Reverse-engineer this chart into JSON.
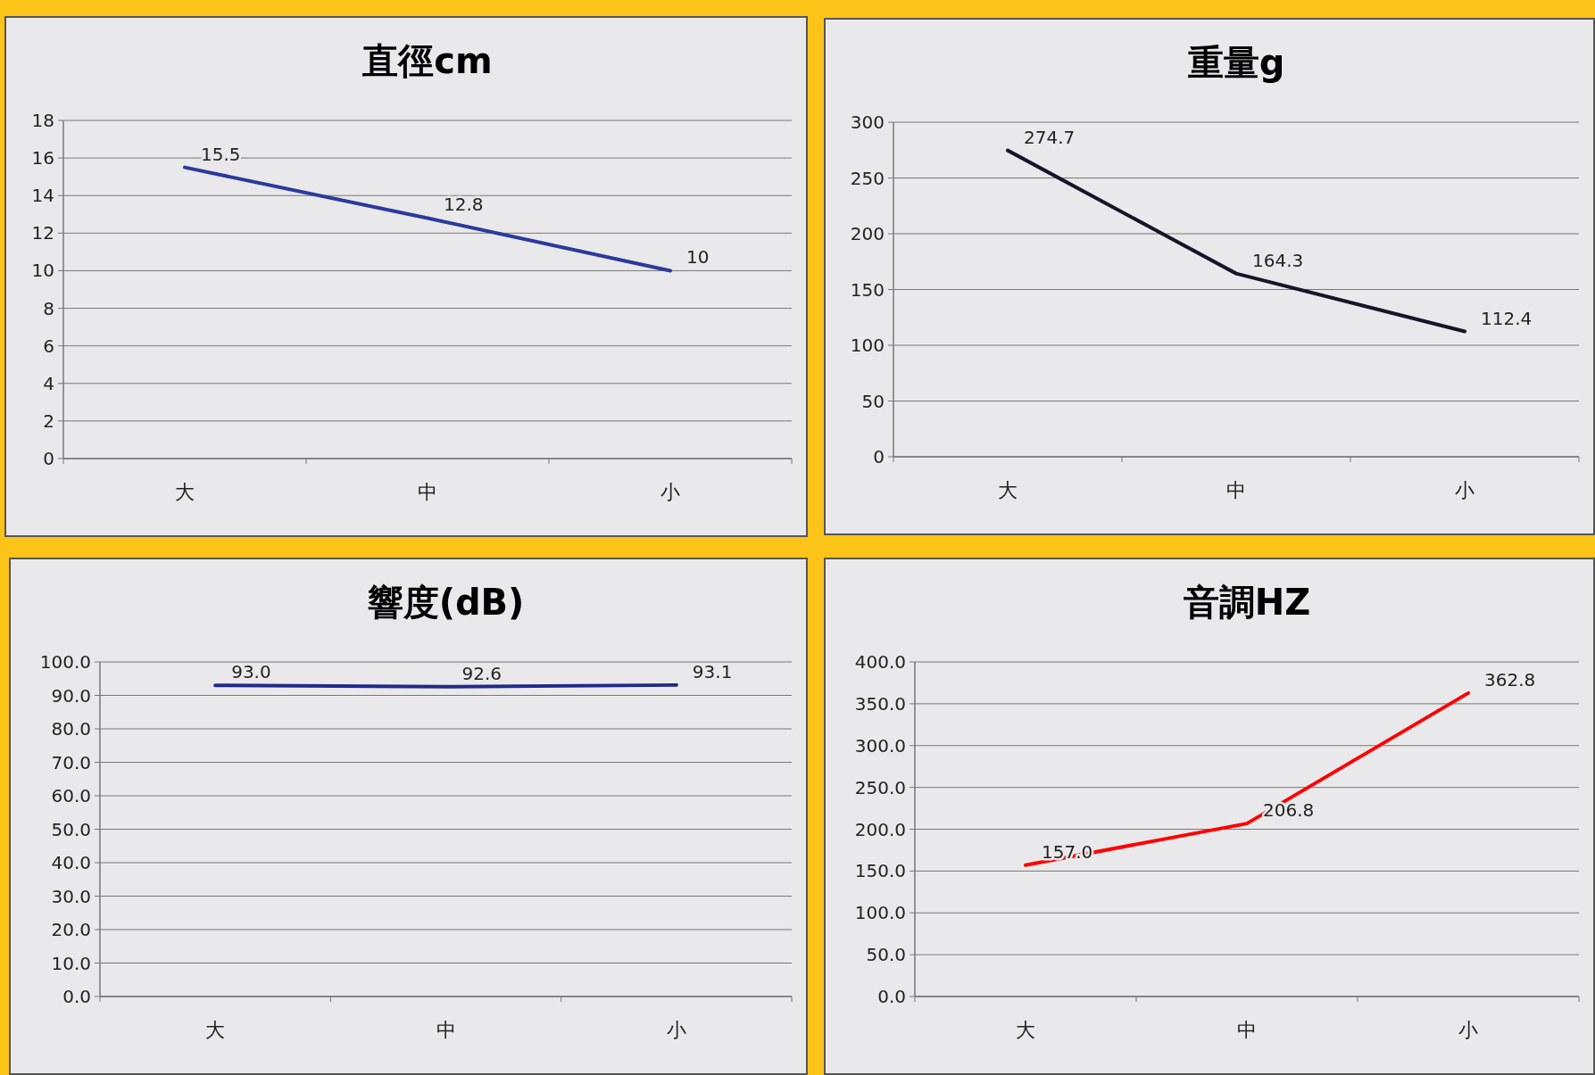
{
  "chart_data": [
    {
      "type": "line",
      "title": "直徑cm",
      "categories": [
        "大",
        "中",
        "小"
      ],
      "values": [
        15.5,
        12.8,
        10
      ],
      "color": "#2b3a9c",
      "ylim": [
        0,
        18
      ],
      "yticks": [
        0,
        2,
        4,
        6,
        8,
        10,
        12,
        14,
        16,
        18
      ],
      "grid": "y",
      "data_labels": true
    },
    {
      "type": "line",
      "title": "重量g",
      "categories": [
        "大",
        "中",
        "小"
      ],
      "values": [
        274.7,
        164.3,
        112.4
      ],
      "color": "#15152a",
      "ylim": [
        0,
        300
      ],
      "yticks": [
        0,
        50,
        100,
        150,
        200,
        250,
        300
      ],
      "grid": "y",
      "data_labels": true
    },
    {
      "type": "line",
      "title": "響度(dB)",
      "categories": [
        "大",
        "中",
        "小"
      ],
      "values": [
        93.0,
        92.6,
        93.1
      ],
      "value_labels": [
        "93.0",
        "92.6",
        "93.1"
      ],
      "color": "#1f2a8a",
      "ylim": [
        0,
        100
      ],
      "yticks": [
        {
          "value": 0,
          "label": "0.0"
        },
        {
          "value": 10,
          "label": "10.0"
        },
        {
          "value": 20,
          "label": "20.0"
        },
        {
          "value": 30,
          "label": "30.0"
        },
        {
          "value": 40,
          "label": "40.0"
        },
        {
          "value": 50,
          "label": "50.0"
        },
        {
          "value": 60,
          "label": "60.0"
        },
        {
          "value": 70,
          "label": "70.0"
        },
        {
          "value": 80,
          "label": "80.0"
        },
        {
          "value": 90,
          "label": "90.0"
        },
        {
          "value": 100,
          "label": "100.0"
        }
      ],
      "grid": "y"
    },
    {
      "type": "line",
      "title": "音調HZ",
      "categories": [
        "大",
        "中",
        "小"
      ],
      "values": [
        157.0,
        206.8,
        362.8
      ],
      "value_labels": [
        "157.0",
        "206.8",
        "362.8"
      ],
      "color": "#ff0000",
      "ylim": [
        0,
        400
      ],
      "yticks": [
        {
          "value": 0,
          "label": "0.0"
        },
        {
          "value": 50,
          "label": "50.0"
        },
        {
          "value": 100,
          "label": "100.0"
        },
        {
          "value": 150,
          "label": "150.0"
        },
        {
          "value": 200,
          "label": "200.0"
        },
        {
          "value": 250,
          "label": "250.0"
        },
        {
          "value": 300,
          "label": "300.0"
        },
        {
          "value": 350,
          "label": "350.0"
        },
        {
          "value": 400,
          "label": "400.0"
        }
      ],
      "grid": "y"
    }
  ]
}
